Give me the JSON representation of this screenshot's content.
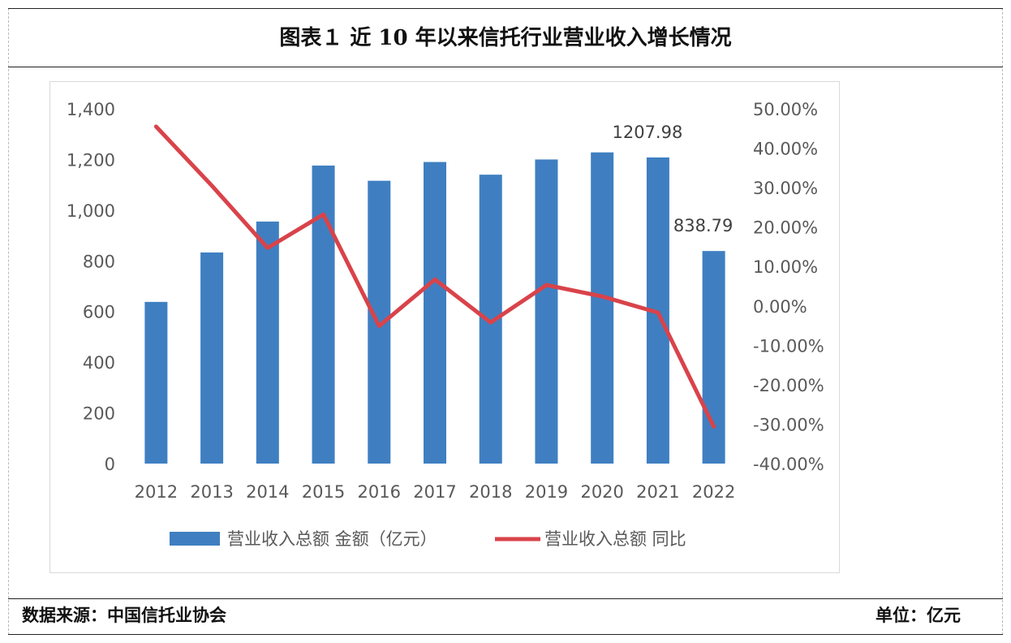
{
  "figure": {
    "title": "图表１ 近 10 年以来信托行业营业收入增长情况",
    "source": "数据来源：中国信托业协会",
    "unit": "单位：亿元"
  },
  "colors": {
    "bar": "#3f7fc1",
    "line": "#d9434a",
    "axis_text": "#595959"
  },
  "chart_data": {
    "type": "bar",
    "title": "图表１ 近 10 年以来信托行业营业收入增长情况",
    "categories": [
      "2012",
      "2013",
      "2014",
      "2015",
      "2016",
      "2017",
      "2018",
      "2019",
      "2020",
      "2021",
      "2022"
    ],
    "series": [
      {
        "name": "营业收入总额 金额（亿元）",
        "type": "bar",
        "axis": "left",
        "values": [
          638,
          833,
          955,
          1176,
          1116,
          1190,
          1140,
          1200,
          1228,
          1207.98,
          838.79
        ]
      },
      {
        "name": "营业收入总额 同比",
        "type": "line",
        "axis": "right",
        "values": [
          45.5,
          30.5,
          14.7,
          23.2,
          -5.1,
          6.7,
          -4.2,
          5.3,
          2.4,
          -1.7,
          -30.6
        ]
      }
    ],
    "y_left": {
      "min": 0,
      "max": 1400,
      "step": 200,
      "ticks": [
        "0",
        "200",
        "400",
        "600",
        "800",
        "1,000",
        "1,200",
        "1,400"
      ]
    },
    "y_right": {
      "min": -40,
      "max": 50,
      "step": 10,
      "ticks": [
        "-40.00%",
        "-30.00%",
        "-20.00%",
        "-10.00%",
        "0.00%",
        "10.00%",
        "20.00%",
        "30.00%",
        "40.00%",
        "50.00%"
      ]
    },
    "data_labels": [
      {
        "index": 9,
        "text": "1207.98"
      },
      {
        "index": 10,
        "text": "838.79"
      }
    ],
    "legend_position": "bottom",
    "grid": false
  }
}
